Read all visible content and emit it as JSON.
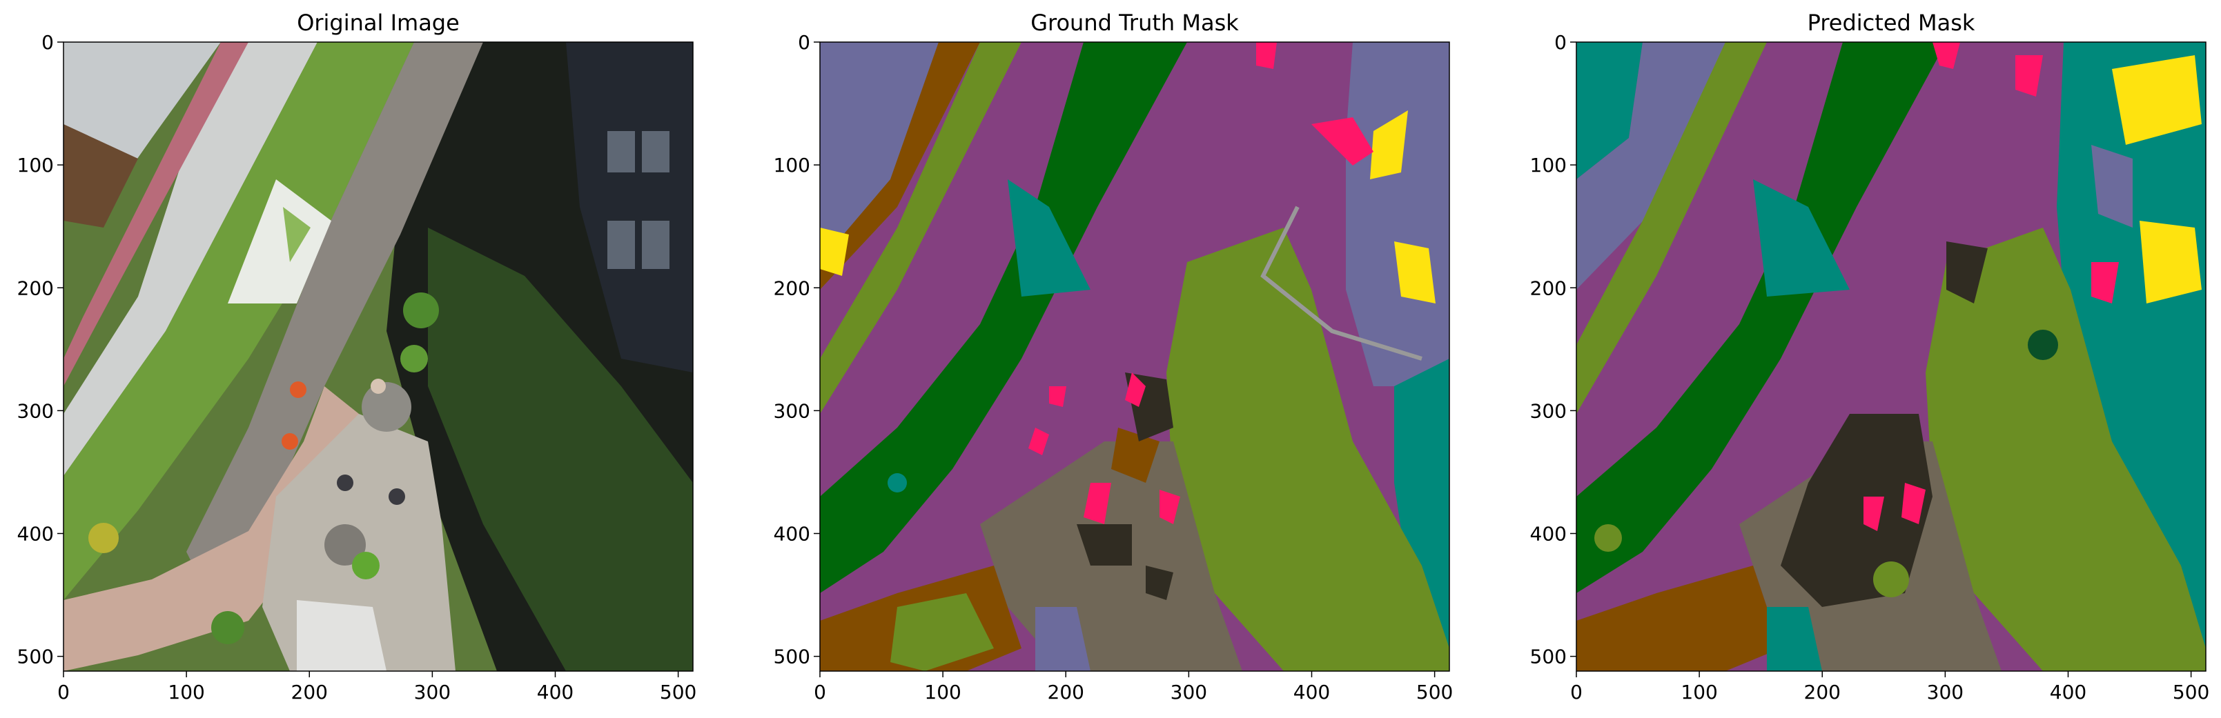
{
  "chart_data": [
    {
      "type": "image",
      "title": "Original Image",
      "xlim": [
        0,
        512
      ],
      "ylim": [
        512,
        0
      ],
      "xticks": [
        0,
        100,
        200,
        300,
        400,
        500
      ],
      "yticks": [
        0,
        100,
        200,
        300,
        400,
        500
      ],
      "xlabel": "",
      "ylabel": ""
    },
    {
      "type": "image",
      "title": "Ground Truth Mask",
      "xlim": [
        0,
        512
      ],
      "ylim": [
        512,
        0
      ],
      "xticks": [
        0,
        100,
        200,
        300,
        400,
        500
      ],
      "yticks": [
        0,
        100,
        200,
        300,
        400,
        500
      ],
      "xlabel": "",
      "ylabel": ""
    },
    {
      "type": "image",
      "title": "Predicted Mask",
      "xlim": [
        0,
        512
      ],
      "ylim": [
        512,
        0
      ],
      "xticks": [
        0,
        100,
        200,
        300,
        400,
        500
      ],
      "yticks": [
        0,
        100,
        200,
        300,
        400,
        500
      ],
      "xlabel": "",
      "ylabel": ""
    }
  ],
  "colors": {
    "paved_area": "#844080",
    "grass": "#00660A",
    "vegetation": "#6B8E23",
    "gravel": "#706757",
    "dirt": "#824C00",
    "roof": "#6C6B9C",
    "water_pool": "#00897B",
    "person": "#FF1668",
    "window": "#FEE30F",
    "rocks": "#302C22",
    "fence": "#999999",
    "tree": "#0A5028"
  }
}
